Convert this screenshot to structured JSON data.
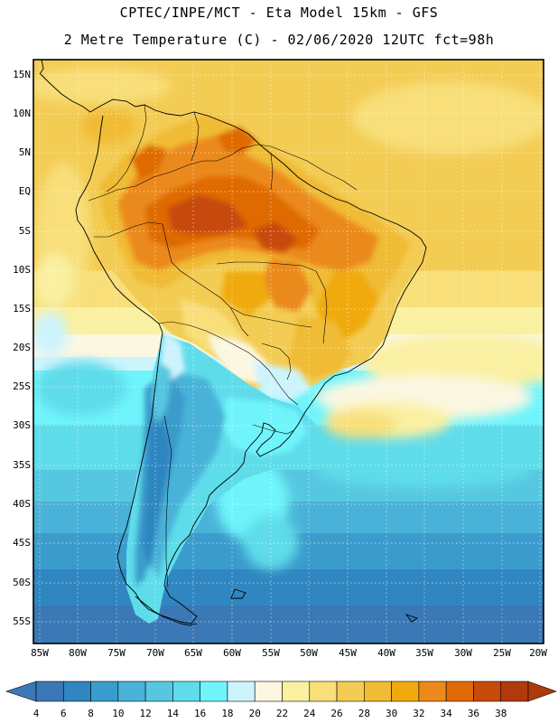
{
  "header": {
    "line1": "CPTEC/INPE/MCT -  Eta Model 15km - GFS",
    "line2": "2 Metre Temperature (C) - 02/06/2020 12UTC fct=98h"
  },
  "map": {
    "region": "South America",
    "variable": "2 Metre Temperature",
    "units": "C",
    "lat_labels": [
      "15N",
      "10N",
      "5N",
      "EQ",
      "5S",
      "10S",
      "15S",
      "20S",
      "25S",
      "30S",
      "35S",
      "40S",
      "45S",
      "50S",
      "55S"
    ],
    "lon_labels": [
      "85W",
      "80W",
      "75W",
      "70W",
      "65W",
      "60W",
      "55W",
      "50W",
      "45W",
      "40W",
      "35W",
      "30W",
      "25W",
      "20W"
    ]
  },
  "colorbar": {
    "labels": [
      "4",
      "6",
      "8",
      "10",
      "12",
      "14",
      "16",
      "18",
      "20",
      "22",
      "24",
      "26",
      "28",
      "30",
      "32",
      "34",
      "36",
      "38"
    ],
    "colors": [
      "#3b78b6",
      "#2f86c0",
      "#3a9ccc",
      "#4ab2d8",
      "#56c7e0",
      "#5fdcea",
      "#6ff4fb",
      "#cdf4fd",
      "#fbf7e1",
      "#faf0a1",
      "#f8df7a",
      "#f3cc54",
      "#f0bb35",
      "#f0aa0d",
      "#eb8a1a",
      "#df6a06",
      "#c74a0a",
      "#b03a0c"
    ]
  }
}
